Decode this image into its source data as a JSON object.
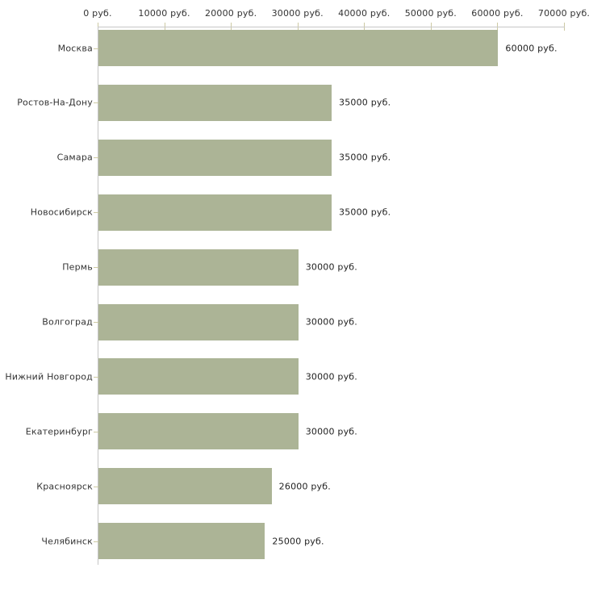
{
  "chart_data": {
    "type": "bar",
    "orientation": "horizontal",
    "title": "",
    "xlabel": "",
    "ylabel": "",
    "unit": "руб.",
    "categories": [
      "Москва",
      "Ростов-На-Дону",
      "Самара",
      "Новосибирск",
      "Пермь",
      "Волгоград",
      "Нижний Новгород",
      "Екатеринбург",
      "Красноярск",
      "Челябинск"
    ],
    "values": [
      60000,
      35000,
      35000,
      35000,
      30000,
      30000,
      30000,
      30000,
      26000,
      25000
    ],
    "value_labels": [
      "60000 руб.",
      "35000 руб.",
      "35000 руб.",
      "35000 руб.",
      "30000 руб.",
      "30000 руб.",
      "30000 руб.",
      "30000 руб.",
      "26000 руб.",
      "25000 руб."
    ],
    "x_tick_values": [
      0,
      10000,
      20000,
      30000,
      40000,
      50000,
      60000,
      70000
    ],
    "x_tick_labels": [
      "0 руб.",
      "10000 руб.",
      "20000 руб.",
      "30000 руб.",
      "40000 руб.",
      "50000 руб.",
      "60000 руб.",
      "70000 руб."
    ],
    "xlim": [
      0,
      70000
    ],
    "grid": false,
    "legend": false,
    "colors": {
      "bar_fill": "#acb496",
      "axis_line": "#c6c6c6",
      "tick_mark": "#cdc9a3",
      "text": "#333333",
      "background": "#ffffff"
    }
  }
}
